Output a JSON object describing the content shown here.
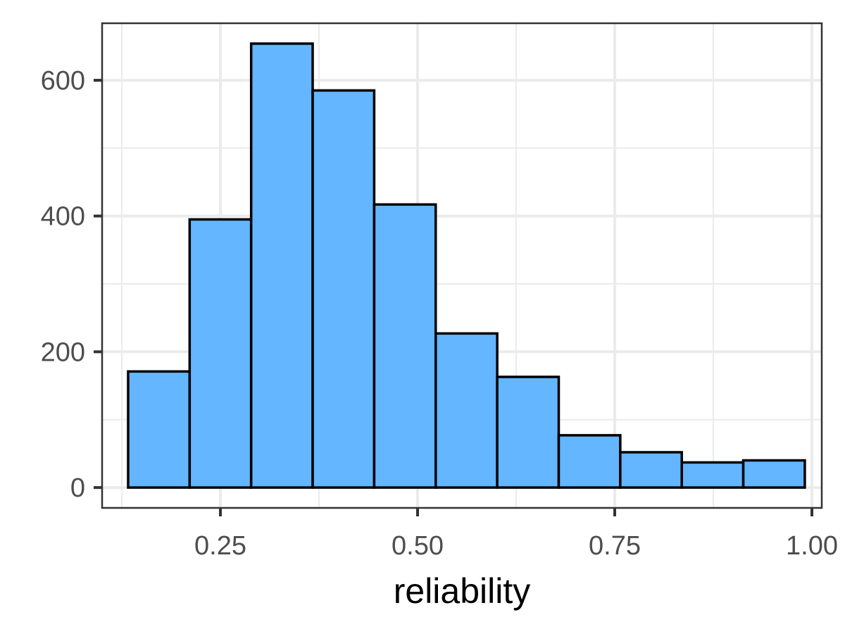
{
  "chart_data": {
    "type": "bar",
    "subtype": "histogram",
    "title": "",
    "xlabel": "reliability",
    "ylabel": "",
    "bins": [
      {
        "x0": 0.133,
        "x1": 0.211,
        "count": 171
      },
      {
        "x0": 0.211,
        "x1": 0.289,
        "count": 395
      },
      {
        "x0": 0.289,
        "x1": 0.367,
        "count": 654
      },
      {
        "x0": 0.367,
        "x1": 0.445,
        "count": 585
      },
      {
        "x0": 0.445,
        "x1": 0.523,
        "count": 417
      },
      {
        "x0": 0.523,
        "x1": 0.601,
        "count": 227
      },
      {
        "x0": 0.601,
        "x1": 0.679,
        "count": 163
      },
      {
        "x0": 0.679,
        "x1": 0.757,
        "count": 77
      },
      {
        "x0": 0.757,
        "x1": 0.835,
        "count": 52
      },
      {
        "x0": 0.835,
        "x1": 0.913,
        "count": 37
      },
      {
        "x0": 0.913,
        "x1": 0.991,
        "count": 40
      }
    ],
    "xlim": [
      0.1,
      1.0125
    ],
    "ylim": [
      -30,
      684
    ],
    "x_ticks": [
      0.25,
      0.5,
      0.75,
      1.0
    ],
    "x_tick_labels": [
      "0.25",
      "0.50",
      "0.75",
      "1.00"
    ],
    "x_minor_ticks": [
      0.125,
      0.375,
      0.625,
      0.875
    ],
    "y_ticks": [
      0,
      200,
      400,
      600
    ],
    "y_tick_labels": [
      "0",
      "200",
      "400",
      "600"
    ],
    "y_minor_ticks": [
      100,
      300,
      500
    ],
    "grid": true,
    "legend": "none",
    "colors": {
      "bar_fill": "#63b6ff",
      "bar_stroke": "#000000",
      "grid": "#ebebeb",
      "panel_border": "#333333",
      "tick_text": "#4d4d4d",
      "axis_title": "#000000"
    }
  }
}
